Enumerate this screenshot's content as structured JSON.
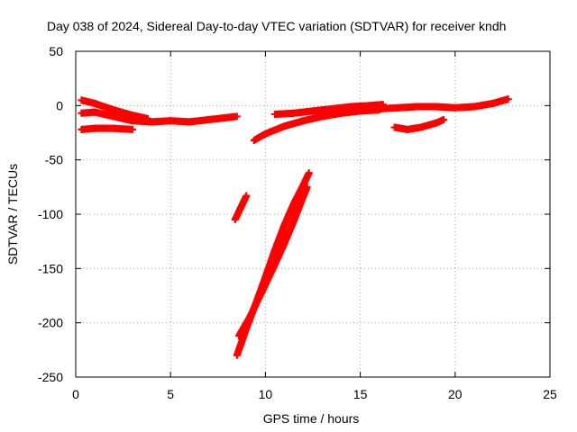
{
  "chart_data": {
    "type": "scatter",
    "title": "Day 038 of 2024, Sidereal Day-to-day VTEC variation (SDTVAR) for receiver kndh",
    "xlabel": "GPS time / hours",
    "ylabel": "SDTVAR / TECUs",
    "xlim": [
      0,
      25
    ],
    "ylim": [
      -250,
      50
    ],
    "xticks": [
      0,
      5,
      10,
      15,
      20,
      25
    ],
    "yticks": [
      50,
      0,
      -50,
      -100,
      -150,
      -200,
      -250
    ],
    "grid": true,
    "marker_color": "#ff0000",
    "series": [
      {
        "tracks": [
          [
            [
              0.3,
              5
            ],
            [
              1.0,
              2
            ],
            [
              2.0,
              -4
            ],
            [
              3.0,
              -9
            ],
            [
              3.8,
              -12
            ]
          ],
          [
            [
              0.3,
              -7
            ],
            [
              1.0,
              -6
            ],
            [
              2.0,
              -10
            ],
            [
              3.0,
              -14
            ],
            [
              4.0,
              -15
            ],
            [
              5.0,
              -14
            ],
            [
              6.0,
              -15
            ],
            [
              7.0,
              -13
            ],
            [
              8.0,
              -11
            ],
            [
              8.5,
              -10
            ]
          ],
          [
            [
              0.3,
              -22
            ],
            [
              1.0,
              -21
            ],
            [
              2.0,
              -21
            ],
            [
              3.0,
              -22
            ]
          ],
          [
            [
              8.4,
              -105
            ],
            [
              8.7,
              -94
            ],
            [
              9.0,
              -83
            ]
          ],
          [
            [
              8.5,
              -230
            ],
            [
              9.0,
              -205
            ],
            [
              9.5,
              -182
            ],
            [
              10.0,
              -158
            ],
            [
              10.5,
              -133
            ],
            [
              11.0,
              -110
            ],
            [
              11.5,
              -90
            ],
            [
              12.0,
              -73
            ],
            [
              12.3,
              -62
            ]
          ],
          [
            [
              8.6,
              -212
            ],
            [
              9.2,
              -194
            ],
            [
              9.8,
              -172
            ],
            [
              10.4,
              -150
            ],
            [
              11.0,
              -127
            ],
            [
              11.5,
              -106
            ],
            [
              11.9,
              -88
            ],
            [
              12.2,
              -75
            ]
          ],
          [
            [
              9.4,
              -32
            ],
            [
              10.0,
              -26
            ],
            [
              11.0,
              -19
            ],
            [
              12.0,
              -14
            ],
            [
              13.0,
              -10
            ],
            [
              14.0,
              -7
            ],
            [
              15.0,
              -5
            ],
            [
              16.0,
              -4
            ]
          ],
          [
            [
              10.5,
              -8
            ],
            [
              11.5,
              -7
            ],
            [
              12.5,
              -5
            ],
            [
              13.5,
              -3
            ],
            [
              14.5,
              -1
            ],
            [
              15.5,
              0
            ],
            [
              16.2,
              1
            ]
          ],
          [
            [
              14.0,
              -5
            ],
            [
              15.0,
              -4
            ],
            [
              16.0,
              -3
            ],
            [
              17.0,
              -2
            ],
            [
              18.0,
              -1
            ],
            [
              19.0,
              -1
            ],
            [
              20.0,
              -2
            ],
            [
              21.0,
              -1
            ],
            [
              22.0,
              2
            ],
            [
              22.8,
              6
            ]
          ],
          [
            [
              16.8,
              -20
            ],
            [
              17.5,
              -22
            ],
            [
              18.2,
              -20
            ],
            [
              19.0,
              -16
            ],
            [
              19.4,
              -13
            ]
          ]
        ]
      }
    ]
  }
}
